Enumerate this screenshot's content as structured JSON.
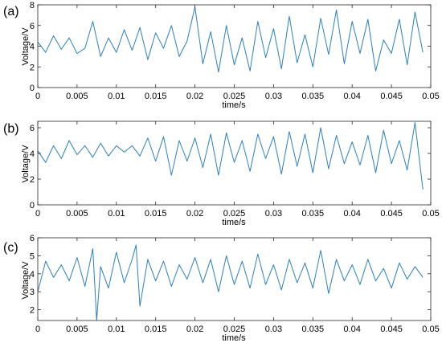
{
  "chart_data": [
    {
      "type": "line",
      "panel_label": "(a)",
      "xlabel": "time/s",
      "ylabel": "Voltage/V",
      "xlim": [
        0,
        0.05
      ],
      "ylim": [
        0,
        8
      ],
      "xticks": [
        0,
        0.005,
        0.01,
        0.015,
        0.02,
        0.025,
        0.03,
        0.035,
        0.04,
        0.045,
        0.05
      ],
      "xtick_labels": [
        "0",
        "0.005",
        "0.01",
        "0.015",
        "0.02",
        "0.025",
        "0.03",
        "0.035",
        "0.04",
        "0.045",
        "0.05"
      ],
      "yticks": [
        0,
        2,
        4,
        6,
        8
      ],
      "ytick_labels": [
        "0",
        "2",
        "4",
        "6",
        "8"
      ],
      "grid": false,
      "series": [
        {
          "color": "#2e7fb8",
          "x": [
            0,
            0.001,
            0.002,
            0.003,
            0.004,
            0.005,
            0.006,
            0.007,
            0.008,
            0.009,
            0.01,
            0.011,
            0.012,
            0.013,
            0.014,
            0.015,
            0.016,
            0.017,
            0.018,
            0.019,
            0.02,
            0.021,
            0.022,
            0.023,
            0.024,
            0.025,
            0.026,
            0.027,
            0.028,
            0.029,
            0.03,
            0.031,
            0.032,
            0.033,
            0.034,
            0.035,
            0.036,
            0.037,
            0.038,
            0.039,
            0.04,
            0.041,
            0.042,
            0.043,
            0.044,
            0.045,
            0.046,
            0.047,
            0.048,
            0.049
          ],
          "y": [
            4.4,
            3.4,
            5.0,
            3.7,
            4.8,
            3.3,
            3.8,
            6.4,
            3.0,
            4.8,
            3.4,
            5.6,
            3.6,
            5.8,
            2.7,
            5.3,
            3.8,
            6.0,
            3.0,
            4.5,
            7.8,
            2.3,
            5.4,
            1.5,
            6.0,
            2.2,
            4.8,
            1.6,
            6.4,
            2.9,
            5.7,
            1.8,
            6.9,
            2.4,
            5.1,
            2.0,
            6.7,
            3.2,
            7.5,
            2.3,
            6.4,
            3.3,
            6.6,
            1.6,
            4.6,
            3.3,
            6.6,
            2.2,
            7.3,
            3.4
          ]
        }
      ]
    },
    {
      "type": "line",
      "panel_label": "(b)",
      "xlabel": "time/s",
      "ylabel": "Voltage/V",
      "xlim": [
        0,
        0.05
      ],
      "ylim": [
        0,
        6.5
      ],
      "xticks": [
        0,
        0.005,
        0.01,
        0.015,
        0.02,
        0.025,
        0.03,
        0.035,
        0.04,
        0.045,
        0.05
      ],
      "xtick_labels": [
        "0",
        "0.005",
        "0.01",
        "0.015",
        "0.02",
        "0.025",
        "0.03",
        "0.035",
        "0.04",
        "0.045",
        "0.05"
      ],
      "yticks": [
        0,
        2,
        4,
        6
      ],
      "ytick_labels": [
        "0",
        "2",
        "4",
        "6"
      ],
      "grid": false,
      "series": [
        {
          "color": "#2e7fb8",
          "x": [
            0,
            0.001,
            0.002,
            0.003,
            0.004,
            0.005,
            0.006,
            0.007,
            0.008,
            0.009,
            0.01,
            0.011,
            0.012,
            0.013,
            0.014,
            0.015,
            0.016,
            0.017,
            0.018,
            0.019,
            0.02,
            0.021,
            0.022,
            0.023,
            0.024,
            0.025,
            0.026,
            0.027,
            0.028,
            0.029,
            0.03,
            0.031,
            0.032,
            0.033,
            0.034,
            0.035,
            0.036,
            0.037,
            0.038,
            0.039,
            0.04,
            0.041,
            0.042,
            0.043,
            0.044,
            0.045,
            0.046,
            0.047,
            0.048,
            0.049
          ],
          "y": [
            4.2,
            3.3,
            4.6,
            3.6,
            5.0,
            3.9,
            4.6,
            3.7,
            4.8,
            3.8,
            4.6,
            4.1,
            4.6,
            3.8,
            5.2,
            3.4,
            5.3,
            2.3,
            5.0,
            3.4,
            5.2,
            2.9,
            5.5,
            2.3,
            5.6,
            3.3,
            5.0,
            2.6,
            5.5,
            3.6,
            5.3,
            2.4,
            5.7,
            3.0,
            5.5,
            2.5,
            6.0,
            2.8,
            5.4,
            3.2,
            4.9,
            3.1,
            5.4,
            2.5,
            5.8,
            3.2,
            5.0,
            2.7,
            6.4,
            1.2
          ]
        }
      ]
    },
    {
      "type": "line",
      "panel_label": "(c)",
      "xlabel": "time/s",
      "ylabel": "Voltage/V",
      "xlim": [
        0,
        0.05
      ],
      "ylim": [
        1.4,
        6
      ],
      "xticks": [
        0,
        0.005,
        0.01,
        0.015,
        0.02,
        0.025,
        0.03,
        0.035,
        0.04,
        0.045,
        0.05
      ],
      "xtick_labels": [
        "0",
        "0.005",
        "0.01",
        "0.015",
        "0.02",
        "0.025",
        "0.03",
        "0.035",
        "0.04",
        "0.045",
        "0.05"
      ],
      "yticks": [
        2,
        3,
        4,
        5,
        6
      ],
      "ytick_labels": [
        "2",
        "3",
        "4",
        "5",
        "6"
      ],
      "grid": false,
      "series": [
        {
          "color": "#2e7fb8",
          "x": [
            0,
            0.001,
            0.002,
            0.003,
            0.004,
            0.005,
            0.006,
            0.007,
            0.0075,
            0.008,
            0.009,
            0.01,
            0.011,
            0.012,
            0.0125,
            0.013,
            0.014,
            0.015,
            0.016,
            0.017,
            0.018,
            0.019,
            0.02,
            0.021,
            0.022,
            0.023,
            0.024,
            0.025,
            0.026,
            0.027,
            0.028,
            0.029,
            0.03,
            0.031,
            0.032,
            0.033,
            0.034,
            0.035,
            0.036,
            0.037,
            0.038,
            0.039,
            0.04,
            0.041,
            0.042,
            0.043,
            0.044,
            0.045,
            0.046,
            0.047,
            0.048,
            0.049
          ],
          "y": [
            3.0,
            4.7,
            3.8,
            4.5,
            3.6,
            4.9,
            3.3,
            5.4,
            1.4,
            4.4,
            3.2,
            5.2,
            3.5,
            4.8,
            5.6,
            2.2,
            4.8,
            3.6,
            4.7,
            3.3,
            4.5,
            3.7,
            4.9,
            3.5,
            4.8,
            3.0,
            5.0,
            3.4,
            4.7,
            3.2,
            5.1,
            3.4,
            4.5,
            3.1,
            4.8,
            3.5,
            4.6,
            3.2,
            5.3,
            2.9,
            4.8,
            3.6,
            4.5,
            3.4,
            4.8,
            3.6,
            4.3,
            3.2,
            4.6,
            3.7,
            4.4,
            3.8
          ]
        }
      ]
    }
  ]
}
